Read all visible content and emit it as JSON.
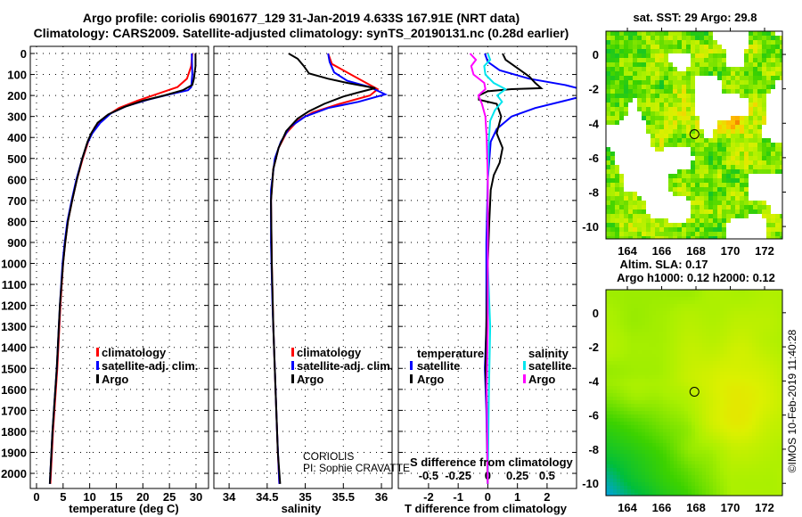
{
  "title": {
    "line1": "Argo profile: coriolis 6901677_129 31-Jan-2019 4.633S 167.91E (NRT data)",
    "line2": "Climatology: CARS2009. Satellite-adjusted climatology: synTS_20190131.nc (0.28d earlier)"
  },
  "notes": {
    "institution": "CORIOLIS",
    "pi": "PI: Sophie CRAVATTE",
    "copyright": "©IMOS 10-Feb-2019 11:40:28"
  },
  "colors": {
    "climatology": "#ff0000",
    "satellite": "#0000ff",
    "argo": "#000000",
    "sal_satellite": "#00e5ee",
    "sal_argo": "#ff00ff"
  },
  "chart_data": [
    {
      "type": "line",
      "id": "temperature",
      "xlabel": "temperature (deg C)",
      "ylabel": "",
      "xlim": [
        -1.17,
        32.35
      ],
      "ylim": [
        2072,
        -34
      ],
      "xticks": [
        0,
        5,
        10,
        15,
        20,
        25,
        30
      ],
      "yticks": [
        0,
        100,
        200,
        300,
        400,
        500,
        600,
        700,
        800,
        900,
        1000,
        1100,
        1200,
        1300,
        1400,
        1500,
        1600,
        1700,
        1800,
        1900,
        2000
      ],
      "grid": true,
      "legend": {
        "placement": "lower-middle",
        "entries": [
          "climatology",
          "satellite-adj. clim.",
          "Argo"
        ]
      },
      "series": [
        {
          "name": "climatology",
          "color": "#ff0000",
          "points": [
            [
              29.3,
              0
            ],
            [
              29.1,
              60
            ],
            [
              28.3,
              120
            ],
            [
              26.5,
              160
            ],
            [
              23,
              190
            ],
            [
              19,
              225
            ],
            [
              15.5,
              260
            ],
            [
              13,
              300
            ],
            [
              11,
              350
            ],
            [
              10,
              400
            ],
            [
              8.7,
              500
            ],
            [
              7.6,
              600
            ],
            [
              6.7,
              700
            ],
            [
              5.9,
              800
            ],
            [
              5.4,
              900
            ],
            [
              5,
              1000
            ],
            [
              4.5,
              1200
            ],
            [
              3.9,
              1500
            ],
            [
              3.1,
              1800
            ],
            [
              2.7,
              2000
            ],
            [
              2.6,
              2050
            ]
          ]
        },
        {
          "name": "satellite-adj. clim.",
          "color": "#0000ff",
          "points": [
            [
              29.2,
              0
            ],
            [
              29.3,
              100
            ],
            [
              29.1,
              160
            ],
            [
              28.5,
              175
            ],
            [
              25,
              195
            ],
            [
              21,
              220
            ],
            [
              17,
              250
            ],
            [
              14,
              285
            ],
            [
              12,
              330
            ],
            [
              10.5,
              380
            ],
            [
              9.5,
              430
            ],
            [
              8.6,
              500
            ],
            [
              7.5,
              600
            ],
            [
              6.6,
              700
            ],
            [
              5.8,
              800
            ],
            [
              5.3,
              900
            ],
            [
              4.9,
              1000
            ],
            [
              4.4,
              1200
            ],
            [
              3.8,
              1500
            ],
            [
              3.0,
              1800
            ],
            [
              2.6,
              2000
            ],
            [
              2.5,
              2050
            ]
          ]
        },
        {
          "name": "Argo",
          "color": "#000000",
          "points": [
            [
              29.9,
              0
            ],
            [
              29.9,
              60
            ],
            [
              29.6,
              120
            ],
            [
              29.3,
              150
            ],
            [
              27.5,
              175
            ],
            [
              24,
              200
            ],
            [
              20,
              225
            ],
            [
              16.5,
              255
            ],
            [
              13.5,
              290
            ],
            [
              11.5,
              330
            ],
            [
              10.3,
              380
            ],
            [
              9.6,
              420
            ],
            [
              8.6,
              500
            ],
            [
              7.6,
              600
            ],
            [
              6.7,
              700
            ],
            [
              5.9,
              800
            ],
            [
              5.4,
              900
            ],
            [
              5,
              1000
            ],
            [
              4.4,
              1200
            ],
            [
              3.8,
              1500
            ],
            [
              3.0,
              1800
            ],
            [
              2.6,
              2000
            ],
            [
              2.5,
              2050
            ]
          ]
        }
      ]
    },
    {
      "type": "line",
      "id": "salinity",
      "xlabel": "salinity",
      "xlim": [
        33.8,
        36.14
      ],
      "ylim": [
        2072,
        -34
      ],
      "xticks": [
        34,
        34.5,
        35,
        35.5,
        36
      ],
      "grid": true,
      "legend": {
        "placement": "lower-middle",
        "entries": [
          "climatology",
          "satellite-adj. clim.",
          "Argo"
        ]
      },
      "series": [
        {
          "name": "climatology",
          "color": "#ff0000",
          "points": [
            [
              35.3,
              0
            ],
            [
              35.35,
              50
            ],
            [
              35.6,
              100
            ],
            [
              35.8,
              140
            ],
            [
              35.95,
              170
            ],
            [
              35.85,
              200
            ],
            [
              35.45,
              240
            ],
            [
              35.1,
              280
            ],
            [
              34.9,
              320
            ],
            [
              34.75,
              380
            ],
            [
              34.65,
              450
            ],
            [
              34.58,
              550
            ],
            [
              34.55,
              700
            ],
            [
              34.56,
              1000
            ],
            [
              34.58,
              1300
            ],
            [
              34.61,
              1600
            ],
            [
              34.64,
              1900
            ],
            [
              34.66,
              2050
            ]
          ]
        },
        {
          "name": "satellite-adj. clim.",
          "color": "#0000ff",
          "points": [
            [
              35.3,
              0
            ],
            [
              35.32,
              40
            ],
            [
              35.38,
              90
            ],
            [
              35.55,
              130
            ],
            [
              35.85,
              160
            ],
            [
              36.05,
              195
            ],
            [
              35.7,
              230
            ],
            [
              35.3,
              260
            ],
            [
              35.0,
              300
            ],
            [
              34.8,
              350
            ],
            [
              34.68,
              420
            ],
            [
              34.6,
              500
            ],
            [
              34.55,
              650
            ],
            [
              34.55,
              900
            ],
            [
              34.57,
              1200
            ],
            [
              34.6,
              1500
            ],
            [
              34.63,
              1800
            ],
            [
              34.66,
              2050
            ]
          ]
        },
        {
          "name": "Argo",
          "color": "#000000",
          "points": [
            [
              34.78,
              0
            ],
            [
              34.9,
              25
            ],
            [
              34.98,
              60
            ],
            [
              35.05,
              95
            ],
            [
              35.3,
              120
            ],
            [
              35.55,
              140
            ],
            [
              35.92,
              165
            ],
            [
              35.7,
              185
            ],
            [
              35.5,
              205
            ],
            [
              35.25,
              240
            ],
            [
              35.05,
              275
            ],
            [
              34.9,
              310
            ],
            [
              34.75,
              370
            ],
            [
              34.65,
              450
            ],
            [
              34.58,
              550
            ],
            [
              34.55,
              700
            ],
            [
              34.56,
              1000
            ],
            [
              34.58,
              1300
            ],
            [
              34.61,
              1600
            ],
            [
              34.64,
              1900
            ],
            [
              34.67,
              2050
            ]
          ]
        }
      ]
    },
    {
      "type": "line",
      "id": "difference",
      "xlabel": "T difference from climatology",
      "x2label": "S difference from climatology",
      "xlim": [
        -3.02,
        2.995
      ],
      "x2lim": [
        -0.755,
        0.749
      ],
      "ylim": [
        2072,
        -34
      ],
      "xticks": [
        -2,
        -1,
        0,
        1,
        2
      ],
      "x2ticks": [
        -0.5,
        -0.25,
        0,
        0.25,
        0.5
      ],
      "grid": true,
      "legend": {
        "placement": "lower",
        "groups": [
          {
            "title": "temperature",
            "entries": [
              "satellite",
              "Argo"
            ]
          },
          {
            "title": "salinity",
            "entries": [
              "satellite",
              "Argo"
            ]
          }
        ]
      },
      "series": [
        {
          "name": "temperature satellite",
          "axis": "T",
          "color": "#0000ff",
          "points": [
            [
              -0.1,
              0
            ],
            [
              0.0,
              40
            ],
            [
              0.4,
              80
            ],
            [
              1.4,
              120
            ],
            [
              2.6,
              150
            ],
            [
              3.3,
              175
            ],
            [
              3.3,
              200
            ],
            [
              2.6,
              225
            ],
            [
              1.6,
              260
            ],
            [
              0.8,
              300
            ],
            [
              0.3,
              360
            ],
            [
              0.1,
              420
            ],
            [
              0.0,
              600
            ],
            [
              -0.05,
              900
            ],
            [
              -0.05,
              1300
            ],
            [
              -0.1,
              1500
            ],
            [
              -0.05,
              1700
            ],
            [
              0.0,
              2050
            ]
          ]
        },
        {
          "name": "temperature Argo",
          "axis": "T",
          "color": "#000000",
          "points": [
            [
              0.5,
              0
            ],
            [
              0.6,
              30
            ],
            [
              0.9,
              60
            ],
            [
              1.4,
              110
            ],
            [
              1.6,
              140
            ],
            [
              1.8,
              165
            ],
            [
              0.8,
              170
            ],
            [
              0.0,
              180
            ],
            [
              -0.3,
              200
            ],
            [
              -0.3,
              220
            ],
            [
              0.3,
              240
            ],
            [
              0.45,
              300
            ],
            [
              0.3,
              380
            ],
            [
              0.5,
              450
            ],
            [
              0.4,
              520
            ],
            [
              0.2,
              580
            ],
            [
              0.1,
              650
            ],
            [
              0.05,
              800
            ],
            [
              0.0,
              1000
            ],
            [
              -0.05,
              1300
            ],
            [
              -0.08,
              1500
            ],
            [
              -0.03,
              1700
            ],
            [
              0.0,
              2050
            ]
          ]
        },
        {
          "name": "salinity satellite",
          "axis": "S",
          "color": "#00e5ee",
          "points": [
            [
              0.0,
              0
            ],
            [
              0.02,
              30
            ],
            [
              -0.03,
              60
            ],
            [
              -0.02,
              100
            ],
            [
              0.05,
              140
            ],
            [
              0.15,
              170
            ],
            [
              0.08,
              200
            ],
            [
              0.12,
              230
            ],
            [
              0.06,
              270
            ],
            [
              0.02,
              320
            ],
            [
              0.01,
              400
            ],
            [
              0.0,
              600
            ],
            [
              0.0,
              1000
            ],
            [
              0.02,
              1300
            ],
            [
              0.01,
              1600
            ],
            [
              0.0,
              2050
            ]
          ]
        },
        {
          "name": "salinity Argo",
          "axis": "S",
          "color": "#ff00ff",
          "points": [
            [
              -0.15,
              0
            ],
            [
              -0.1,
              30
            ],
            [
              -0.14,
              60
            ],
            [
              -0.12,
              100
            ],
            [
              -0.03,
              140
            ],
            [
              -0.02,
              170
            ],
            [
              -0.08,
              200
            ],
            [
              -0.05,
              240
            ],
            [
              -0.02,
              300
            ],
            [
              -0.01,
              400
            ],
            [
              0.0,
              600
            ],
            [
              0.0,
              1000
            ],
            [
              0.0,
              1300
            ],
            [
              -0.01,
              1600
            ],
            [
              0.0,
              2050
            ]
          ]
        }
      ]
    },
    {
      "type": "heatmap",
      "id": "sst-map",
      "title": "sat. SST: 29 Argo: 29.8",
      "xlim": [
        162.75,
        173.04
      ],
      "ylim": [
        -10.72,
        1.35
      ],
      "xticks": [
        164,
        166,
        168,
        170,
        172
      ],
      "yticks": [
        0,
        -2,
        -4,
        -6,
        -8,
        -10
      ],
      "marker": {
        "lon": 167.91,
        "lat": -4.633
      }
    },
    {
      "type": "heatmap",
      "id": "sla-map",
      "title": "Altim. SLA: 0.17",
      "subtitle": "Argo h1000: 0.12 h2000: 0.12",
      "xlim": [
        162.75,
        173.04
      ],
      "ylim": [
        -10.72,
        1.35
      ],
      "xticks": [
        164,
        166,
        168,
        170,
        172
      ],
      "yticks": [
        0,
        -2,
        -4,
        -6,
        -8,
        -10
      ],
      "marker": {
        "lon": 167.91,
        "lat": -4.633
      }
    }
  ]
}
